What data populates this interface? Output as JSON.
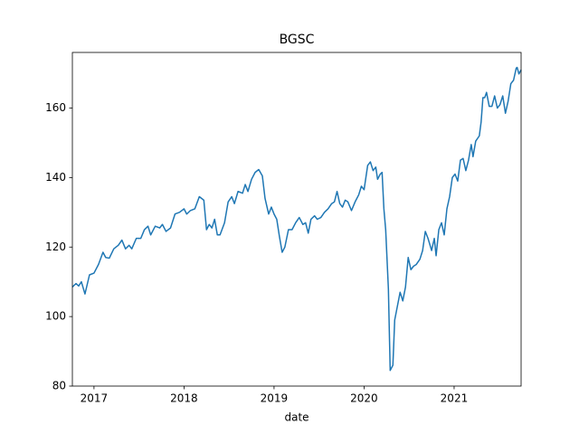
{
  "chart_data": {
    "type": "line",
    "title": "BGSC",
    "x_label": "date",
    "x": [
      2016.76,
      2016.8,
      2016.83,
      2016.86,
      2016.9,
      2016.95,
      2017.0,
      2017.05,
      2017.1,
      2017.13,
      2017.17,
      2017.22,
      2017.27,
      2017.31,
      2017.35,
      2017.39,
      2017.42,
      2017.47,
      2017.52,
      2017.56,
      2017.6,
      2017.63,
      2017.68,
      2017.73,
      2017.76,
      2017.8,
      2017.85,
      2017.9,
      2017.95,
      2018.0,
      2018.03,
      2018.07,
      2018.12,
      2018.17,
      2018.22,
      2018.25,
      2018.28,
      2018.31,
      2018.34,
      2018.37,
      2018.4,
      2018.45,
      2018.49,
      2018.53,
      2018.56,
      2018.6,
      2018.65,
      2018.68,
      2018.71,
      2018.75,
      2018.79,
      2018.83,
      2018.87,
      2018.9,
      2018.94,
      2018.97,
      2019.0,
      2019.03,
      2019.06,
      2019.09,
      2019.12,
      2019.16,
      2019.2,
      2019.24,
      2019.28,
      2019.32,
      2019.35,
      2019.38,
      2019.41,
      2019.45,
      2019.48,
      2019.52,
      2019.56,
      2019.6,
      2019.64,
      2019.67,
      2019.7,
      2019.73,
      2019.76,
      2019.79,
      2019.82,
      2019.86,
      2019.9,
      2019.94,
      2019.97,
      2020.0,
      2020.04,
      2020.07,
      2020.1,
      2020.13,
      2020.15,
      2020.18,
      2020.2,
      2020.22,
      2020.24,
      2020.27,
      2020.29,
      2020.32,
      2020.34,
      2020.37,
      2020.4,
      2020.43,
      2020.46,
      2020.49,
      2020.52,
      2020.55,
      2020.58,
      2020.62,
      2020.65,
      2020.68,
      2020.71,
      2020.75,
      2020.78,
      2020.8,
      2020.83,
      2020.86,
      2020.89,
      2020.92,
      2020.95,
      2020.98,
      2021.01,
      2021.04,
      2021.07,
      2021.1,
      2021.13,
      2021.16,
      2021.19,
      2021.21,
      2021.24,
      2021.28,
      2021.3,
      2021.32,
      2021.34,
      2021.36,
      2021.39,
      2021.42,
      2021.45,
      2021.48,
      2021.51,
      2021.54,
      2021.57,
      2021.6,
      2021.63,
      2021.66,
      2021.69,
      2021.7,
      2021.72,
      2021.744
    ],
    "series": [
      {
        "color": "#1f77b4",
        "values": [
          108.5,
          109.5,
          108.8,
          110,
          106.5,
          112,
          112.5,
          115,
          118.5,
          117,
          116.8,
          119.5,
          120.5,
          122,
          119.5,
          120.5,
          119.5,
          122.5,
          122.5,
          125,
          126,
          123.5,
          126,
          125.5,
          126.5,
          124.5,
          125.5,
          129.5,
          130,
          131,
          129.5,
          130.5,
          131,
          134.5,
          133.5,
          125,
          126.5,
          125.5,
          128,
          123.5,
          123.5,
          127,
          133,
          134.5,
          132.5,
          136,
          135.5,
          138,
          136,
          139.5,
          141.5,
          142.3,
          140.5,
          134,
          129.5,
          131.5,
          129.5,
          128,
          123,
          118.5,
          120,
          125,
          125,
          127,
          128.5,
          126.5,
          127,
          124,
          128,
          129,
          128,
          128.5,
          130,
          131,
          132.5,
          133,
          136,
          132.5,
          131.5,
          133.5,
          133,
          130.5,
          133,
          135,
          137.5,
          136.5,
          143.5,
          144.5,
          142,
          143,
          139.5,
          141,
          141.5,
          131,
          125,
          108,
          84.5,
          86,
          99,
          103,
          107,
          104.5,
          108.5,
          117,
          113.5,
          114.5,
          115,
          116.5,
          119,
          124.5,
          122.5,
          119,
          122.5,
          117.5,
          125,
          127,
          123.5,
          131,
          134.5,
          140,
          141,
          139,
          145,
          145.5,
          142,
          145,
          149.5,
          146,
          150.5,
          152,
          156,
          163,
          163,
          164.5,
          160.5,
          160.5,
          163.5,
          160,
          161,
          163.5,
          158.5,
          162,
          167,
          168,
          171.5,
          171.7,
          169.8,
          171
        ]
      }
    ],
    "xlim": [
      2016.76,
      2021.744
    ],
    "xticks": [
      2017,
      2018,
      2019,
      2020,
      2021
    ],
    "ylim": [
      80,
      176
    ],
    "yticks": [
      80,
      100,
      120,
      140,
      160
    ],
    "grid": false
  }
}
